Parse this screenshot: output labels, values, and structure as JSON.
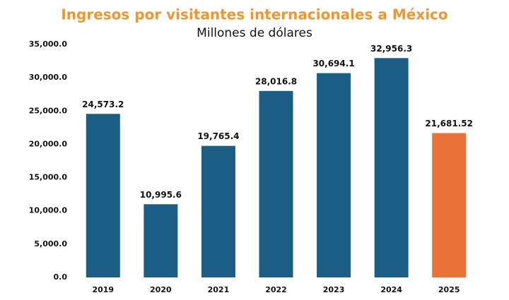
{
  "chart_data": {
    "type": "bar",
    "title": "Ingresos por visitantes internacionales a México",
    "subtitle": "Millones de dólares",
    "categories": [
      "2019",
      "2020",
      "2021",
      "2022",
      "2023",
      "2024",
      "2025"
    ],
    "values": [
      24573.2,
      10995.6,
      19765.4,
      28016.8,
      30694.1,
      32956.3,
      21681.52
    ],
    "value_labels": [
      "24,573.2",
      "10,995.6",
      "19,765.4",
      "28,016.8",
      "30,694.1",
      "32,956.3",
      "21,681.52"
    ],
    "colors": [
      "#1b5e85",
      "#1b5e85",
      "#1b5e85",
      "#1b5e85",
      "#1b5e85",
      "#1b5e85",
      "#eb7237"
    ],
    "ylim": [
      0,
      35000
    ],
    "yticks": [
      {
        "value": 0,
        "label": "0.0"
      },
      {
        "value": 5000,
        "label": "5,000.0"
      },
      {
        "value": 10000,
        "label": "10,000.0"
      },
      {
        "value": 15000,
        "label": "15,000.0"
      },
      {
        "value": 20000,
        "label": "20,000.0"
      },
      {
        "value": 25000,
        "label": "25,000.0"
      },
      {
        "value": 30000,
        "label": "30,000.0"
      },
      {
        "value": 35000,
        "label": "35,000.0"
      }
    ],
    "grid": false
  }
}
